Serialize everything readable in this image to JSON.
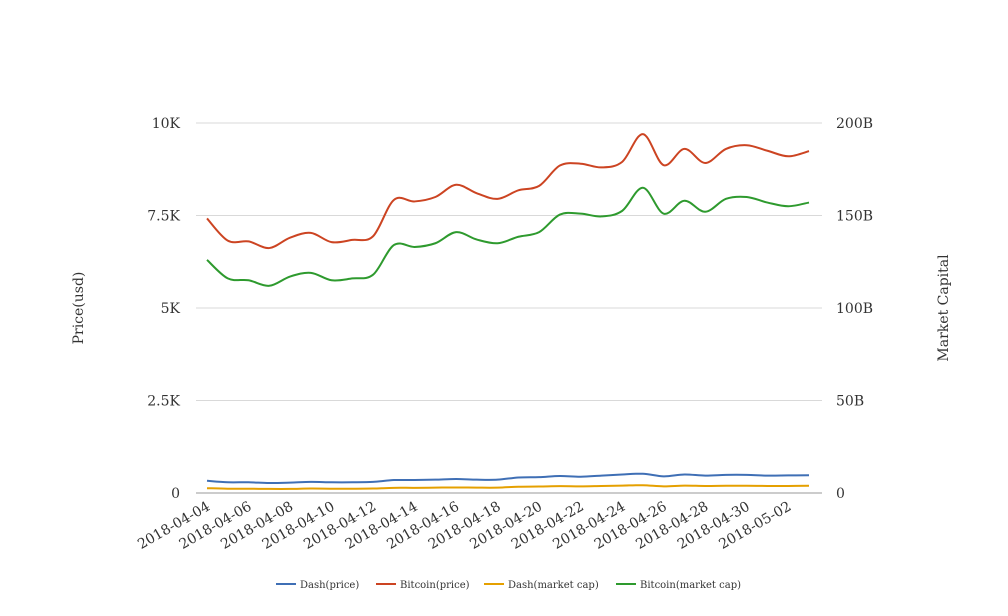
{
  "chart_data": {
    "type": "line",
    "title": "",
    "ylabel": "Price(usd)",
    "y2label": "Market Capital",
    "ylim": [
      0,
      10000
    ],
    "y2lim": [
      0,
      200000000000
    ],
    "grid": true,
    "legend_position": "bottom",
    "x_ticks": [
      "2018-04-04",
      "2018-04-06",
      "2018-04-08",
      "2018-04-10",
      "2018-04-12",
      "2018-04-14",
      "2018-04-16",
      "2018-04-18",
      "2018-04-20",
      "2018-04-22",
      "2018-04-24",
      "2018-04-26",
      "2018-04-28",
      "2018-04-30",
      "2018-05-02"
    ],
    "y_ticks": [
      "0",
      "2.5K",
      "5K",
      "7.5K",
      "10K"
    ],
    "y2_ticks": [
      "0",
      "50B",
      "100B",
      "150B",
      "200B"
    ],
    "x": [
      "2018-04-04",
      "2018-04-05",
      "2018-04-06",
      "2018-04-07",
      "2018-04-08",
      "2018-04-09",
      "2018-04-10",
      "2018-04-11",
      "2018-04-12",
      "2018-04-13",
      "2018-04-14",
      "2018-04-15",
      "2018-04-16",
      "2018-04-17",
      "2018-04-18",
      "2018-04-19",
      "2018-04-20",
      "2018-04-21",
      "2018-04-22",
      "2018-04-23",
      "2018-04-24",
      "2018-04-25",
      "2018-04-26",
      "2018-04-27",
      "2018-04-28",
      "2018-04-29",
      "2018-04-30",
      "2018-05-01",
      "2018-05-02",
      "2018-05-03"
    ],
    "series": [
      {
        "name": "Dash(price)",
        "axis": "left",
        "color": "#3f6fb5",
        "values": [
          330,
          290,
          290,
          270,
          280,
          300,
          290,
          290,
          300,
          350,
          350,
          360,
          380,
          360,
          360,
          420,
          430,
          460,
          440,
          470,
          500,
          520,
          450,
          500,
          470,
          490,
          490,
          470,
          475,
          480
        ]
      },
      {
        "name": "Bitcoin(price)",
        "axis": "left",
        "color": "#cc4422",
        "values": [
          7420,
          6820,
          6800,
          6620,
          6900,
          7030,
          6780,
          6840,
          6940,
          7920,
          7880,
          8000,
          8330,
          8100,
          7950,
          8180,
          8300,
          8850,
          8900,
          8800,
          8950,
          9700,
          8860,
          9300,
          8920,
          9300,
          9400,
          9250,
          9100,
          9240
        ]
      },
      {
        "name": "Dash(market cap)",
        "axis": "right",
        "color": "#e5a000",
        "values": [
          2600000000,
          2300000000,
          2300000000,
          2200000000,
          2200000000,
          2400000000,
          2300000000,
          2300000000,
          2400000000,
          2800000000,
          2800000000,
          2900000000,
          3000000000,
          2900000000,
          2900000000,
          3400000000,
          3500000000,
          3700000000,
          3600000000,
          3800000000,
          4000000000,
          4200000000,
          3600000000,
          4000000000,
          3800000000,
          3900000000,
          3900000000,
          3800000000,
          3800000000,
          3900000000
        ]
      },
      {
        "name": "Bitcoin(market cap)",
        "axis": "right",
        "color": "#2e9a2e",
        "values": [
          126000000000,
          116000000000,
          115000000000,
          112000000000,
          117000000000,
          119000000000,
          115000000000,
          116000000000,
          118000000000,
          134000000000,
          133000000000,
          135000000000,
          141000000000,
          137000000000,
          135000000000,
          138500000000,
          141000000000,
          150500000000,
          151000000000,
          149500000000,
          152500000000,
          165000000000,
          151000000000,
          158000000000,
          152000000000,
          159000000000,
          160000000000,
          157000000000,
          155000000000,
          157000000000
        ]
      }
    ]
  }
}
